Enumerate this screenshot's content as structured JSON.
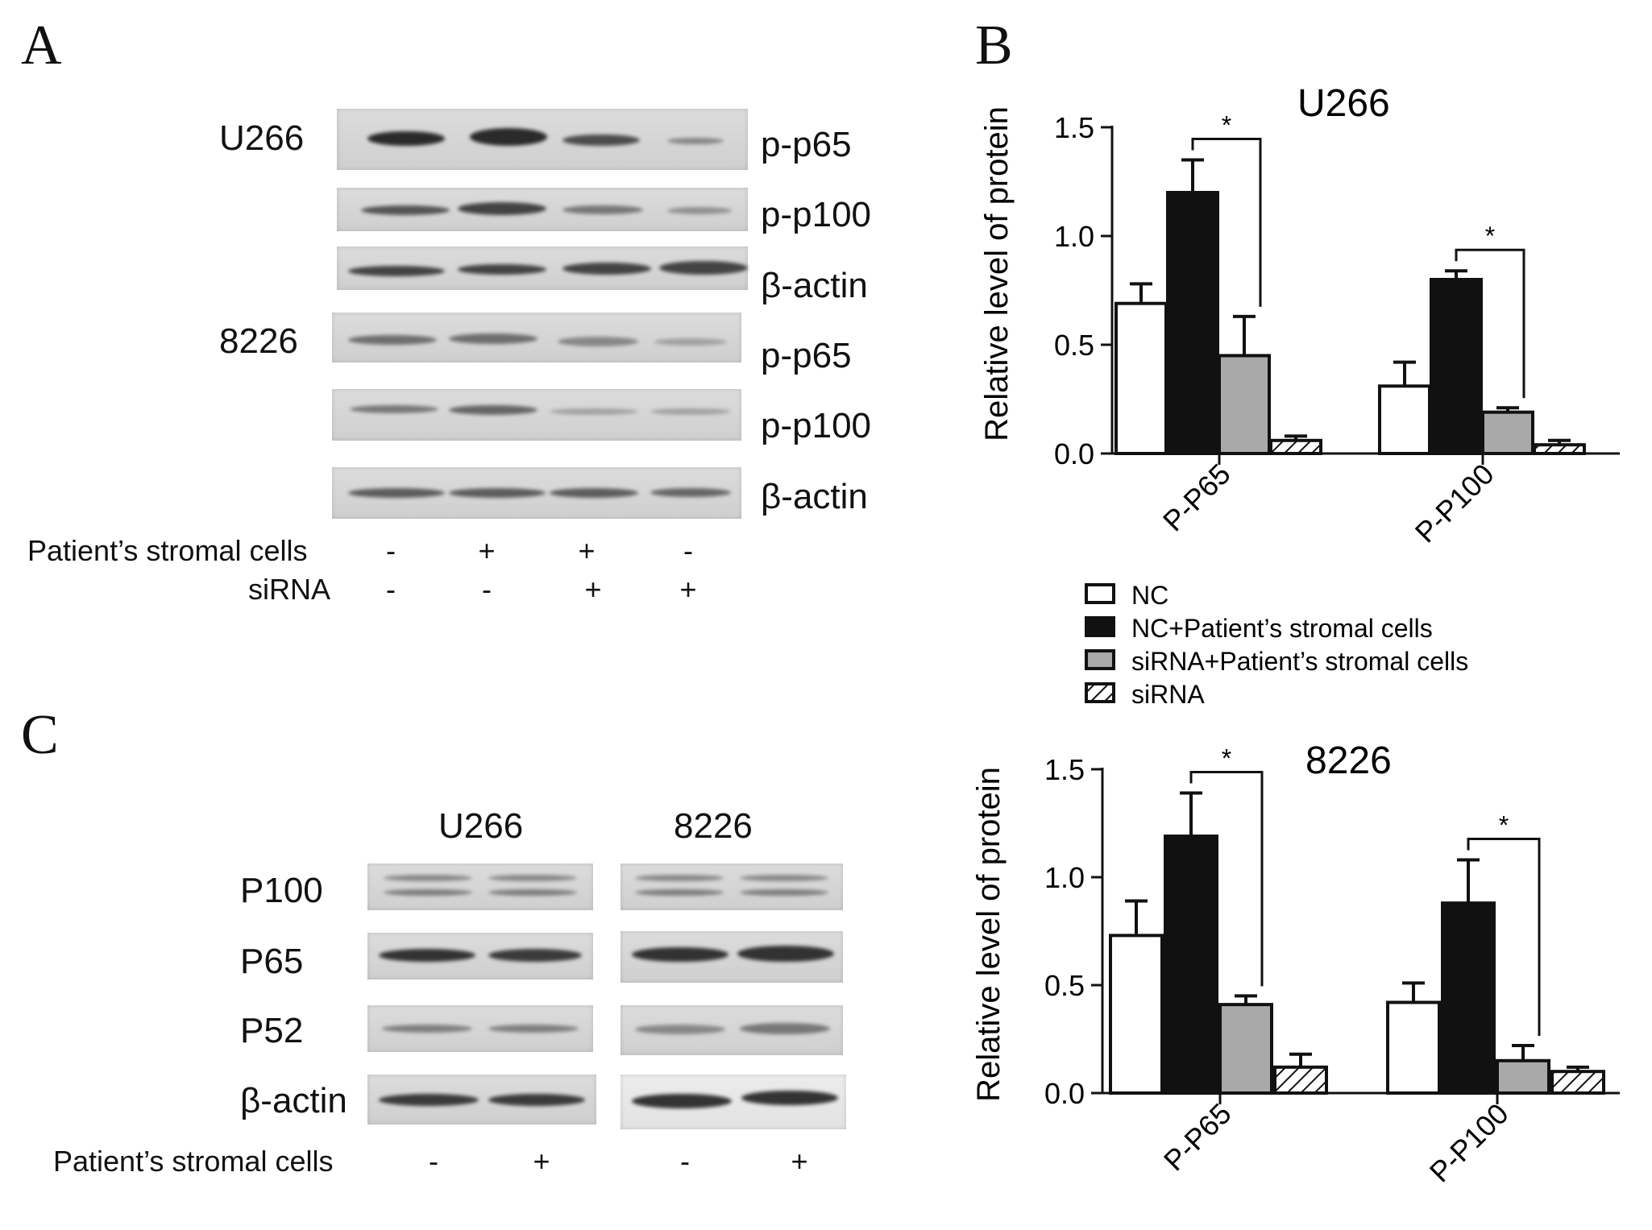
{
  "panels": {
    "a": "A",
    "b": "B",
    "c": "C"
  },
  "panelA": {
    "cell_line_1": "U266",
    "cell_line_2": "8226",
    "row_labels": [
      "p-p65",
      "p-p100",
      "β-actin",
      "p-p65",
      "p-p100",
      "β-actin"
    ],
    "condition_labels": [
      "Patient’s stromal cells",
      "siRNA"
    ],
    "stromal_signs": [
      "-",
      "+",
      "+",
      "-"
    ],
    "sirna_signs": [
      "-",
      "-",
      "+",
      "+"
    ]
  },
  "panelC": {
    "groups": [
      "U266",
      "8226"
    ],
    "row_labels": [
      "P100",
      "P65",
      "P52",
      "β-actin"
    ],
    "condition_label": "Patient’s stromal cells",
    "signs": [
      "-",
      "+",
      "-",
      "+"
    ]
  },
  "legend": [
    "NC",
    "NC+Patient’s stromal cells",
    "siRNA+Patient’s stromal cells",
    "siRNA"
  ],
  "colors": {
    "NC": "#ffffff",
    "NC_stromal": "#111111",
    "siRNA_stromal": "#a9a9a9",
    "siRNA": "hatched"
  },
  "chart_data": [
    {
      "type": "bar",
      "title": "U266",
      "ylabel": "Relative level of protein",
      "ylim": [
        0,
        1.5
      ],
      "yticks": [
        "0.0",
        "0.5",
        "1.0",
        "1.5"
      ],
      "categories": [
        "P-P65",
        "P-P100"
      ],
      "series": [
        {
          "name": "NC",
          "values": [
            0.69,
            0.31
          ],
          "errors": [
            0.09,
            0.11
          ]
        },
        {
          "name": "NC+Patient’s stromal cells",
          "values": [
            1.2,
            0.8
          ],
          "errors": [
            0.15,
            0.04
          ]
        },
        {
          "name": "siRNA+Patient’s stromal cells",
          "values": [
            0.45,
            0.19
          ],
          "errors": [
            0.18,
            0.02
          ]
        },
        {
          "name": "siRNA",
          "values": [
            0.06,
            0.04
          ],
          "errors": [
            0.02,
            0.02
          ]
        }
      ],
      "significance": [
        "*",
        "*"
      ]
    },
    {
      "type": "bar",
      "title": "8226",
      "ylabel": "Relative level of protein",
      "ylim": [
        0,
        1.5
      ],
      "yticks": [
        "0.0",
        "0.5",
        "1.0",
        "1.5"
      ],
      "categories": [
        "P-P65",
        "P-P100"
      ],
      "series": [
        {
          "name": "NC",
          "values": [
            0.73,
            0.42
          ],
          "errors": [
            0.16,
            0.09
          ]
        },
        {
          "name": "NC+Patient’s stromal cells",
          "values": [
            1.19,
            0.88
          ],
          "errors": [
            0.2,
            0.2
          ]
        },
        {
          "name": "siRNA+Patient’s stromal cells",
          "values": [
            0.41,
            0.15
          ],
          "errors": [
            0.04,
            0.07
          ]
        },
        {
          "name": "siRNA",
          "values": [
            0.12,
            0.1
          ],
          "errors": [
            0.06,
            0.02
          ]
        }
      ],
      "significance": [
        "*",
        "*"
      ]
    }
  ]
}
